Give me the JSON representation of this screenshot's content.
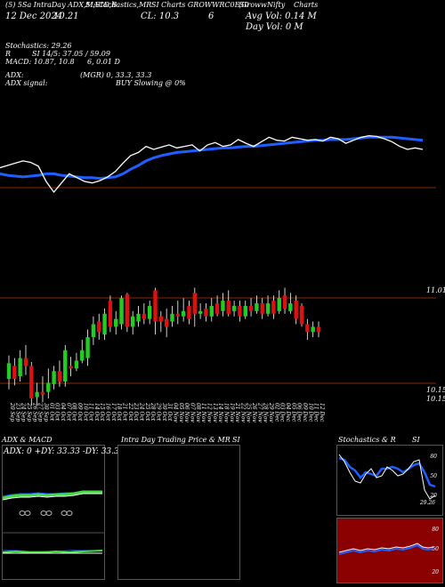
{
  "header": {
    "line1_a": "(5) 5Sa IntraDay ADX,MACD,B",
    "line1_b": "SI,Stochastics,MR",
    "line1_c": "SI Charts GROWWRC0E50",
    "line1_d": "(Groww",
    "line1_e": "Nifty",
    "line1_f": "Charts",
    "date": "12 Dec 2024",
    "date_val": "10.21",
    "close": "CL: 10.3",
    "close_n": "6",
    "avg_vol": "Avg Vol: 0.14  M",
    "day_vol": "Day Vol: 0   M",
    "stoch": "Stochastics: 29.26",
    "rsi_label": "R",
    "si": "SI 14/5: 37.05 / 59.09",
    "macd": "MACD: 10.87,  10.8",
    "macd_b": "6,  0.01 D",
    "adx": "ADX:",
    "adx_vals": "(MGR) 0,  33.3,  33.3",
    "adx_signal": "ADX  signal:",
    "buy": "BUY Slowing @ 0%"
  },
  "price_labels": {
    "top": "11.01",
    "bot1": "10.15",
    "bot2": "10.15"
  },
  "dates": [
    "20 Sep",
    "23 Sep",
    "24 Sep",
    "25 Sep",
    "26 Sep",
    "27 Sep",
    "30 Sep",
    "01 Oct",
    "03 Oct",
    "04 Oct",
    "07 Oct",
    "08 Oct",
    "09 Oct",
    "10 Oct",
    "11 Oct",
    "14 Oct",
    "15 Oct",
    "16 Oct",
    "17 Oct",
    "18 Oct",
    "21 Oct",
    "22 Oct",
    "23 Oct",
    "24 Oct",
    "25 Oct",
    "28 Oct",
    "29 Oct",
    "30 Oct",
    "31 Oct",
    "04 Nov",
    "05 Nov",
    "06 Nov",
    "07 Nov",
    "08 Nov",
    "11 Nov",
    "12 Nov",
    "13 Nov",
    "14 Nov",
    "18 Nov",
    "19 Nov",
    "21 Nov",
    "22 Nov",
    "25 Nov",
    "26 Nov",
    "27 Nov",
    "28 Nov",
    "29 Nov",
    "02 Dec",
    "03 Dec",
    "04 Dec",
    "05 Dec",
    "06 Dec",
    "09 Dec",
    "10 Dec",
    "11 Dec",
    "12 Dec"
  ],
  "chart_data": {
    "type": "candlestick",
    "x": [
      "20 Sep",
      "23 Sep",
      "24 Sep",
      "25 Sep",
      "26 Sep",
      "27 Sep",
      "30 Sep",
      "01 Oct",
      "03 Oct",
      "04 Oct",
      "07 Oct",
      "08 Oct",
      "09 Oct",
      "10 Oct",
      "11 Oct",
      "14 Oct",
      "15 Oct",
      "16 Oct",
      "17 Oct",
      "18 Oct",
      "21 Oct",
      "22 Oct",
      "23 Oct",
      "24 Oct",
      "25 Oct",
      "28 Oct",
      "29 Oct",
      "30 Oct",
      "31 Oct",
      "04 Nov",
      "05 Nov",
      "06 Nov",
      "07 Nov",
      "08 Nov",
      "11 Nov",
      "12 Nov",
      "13 Nov",
      "14 Nov",
      "18 Nov",
      "19 Nov",
      "21 Nov",
      "22 Nov",
      "25 Nov",
      "26 Nov",
      "27 Nov",
      "28 Nov",
      "29 Nov",
      "02 Dec",
      "03 Dec",
      "04 Dec",
      "05 Dec",
      "06 Dec",
      "09 Dec",
      "10 Dec",
      "11 Dec",
      "12 Dec"
    ],
    "candles": [
      {
        "o": 10.3,
        "c": 10.42,
        "h": 10.48,
        "l": 10.22,
        "up": true
      },
      {
        "o": 10.4,
        "c": 10.3,
        "h": 10.46,
        "l": 10.25,
        "up": false
      },
      {
        "o": 10.32,
        "c": 10.46,
        "h": 10.52,
        "l": 10.28,
        "up": true
      },
      {
        "o": 10.46,
        "c": 10.4,
        "h": 10.56,
        "l": 10.33,
        "up": false
      },
      {
        "o": 10.4,
        "c": 10.15,
        "h": 10.43,
        "l": 10.1,
        "up": false
      },
      {
        "o": 10.16,
        "c": 10.2,
        "h": 10.27,
        "l": 10.1,
        "up": true
      },
      {
        "o": 10.2,
        "c": 10.18,
        "h": 10.32,
        "l": 10.12,
        "up": false
      },
      {
        "o": 10.2,
        "c": 10.27,
        "h": 10.38,
        "l": 10.15,
        "up": true
      },
      {
        "o": 10.26,
        "c": 10.36,
        "h": 10.4,
        "l": 10.22,
        "up": true
      },
      {
        "o": 10.36,
        "c": 10.28,
        "h": 10.44,
        "l": 10.24,
        "up": false
      },
      {
        "o": 10.28,
        "c": 10.52,
        "h": 10.56,
        "l": 10.24,
        "up": true
      },
      {
        "o": 10.4,
        "c": 10.38,
        "h": 10.47,
        "l": 10.32,
        "up": false
      },
      {
        "o": 10.38,
        "c": 10.44,
        "h": 10.5,
        "l": 10.36,
        "up": true
      },
      {
        "o": 10.44,
        "c": 10.52,
        "h": 10.6,
        "l": 10.42,
        "up": true
      },
      {
        "o": 10.46,
        "c": 10.62,
        "h": 10.68,
        "l": 10.4,
        "up": true
      },
      {
        "o": 10.62,
        "c": 10.72,
        "h": 10.78,
        "l": 10.56,
        "up": true
      },
      {
        "o": 10.74,
        "c": 10.66,
        "h": 10.8,
        "l": 10.6,
        "up": false
      },
      {
        "o": 10.64,
        "c": 10.8,
        "h": 10.84,
        "l": 10.6,
        "up": true
      },
      {
        "o": 10.9,
        "c": 10.7,
        "h": 10.94,
        "l": 10.66,
        "up": false
      },
      {
        "o": 10.7,
        "c": 10.76,
        "h": 10.82,
        "l": 10.64,
        "up": true
      },
      {
        "o": 10.72,
        "c": 10.92,
        "h": 10.94,
        "l": 10.68,
        "up": true
      },
      {
        "o": 10.95,
        "c": 10.7,
        "h": 10.96,
        "l": 10.66,
        "up": false
      },
      {
        "o": 10.7,
        "c": 10.78,
        "h": 10.82,
        "l": 10.64,
        "up": true
      },
      {
        "o": 10.74,
        "c": 10.8,
        "h": 10.86,
        "l": 10.7,
        "up": true
      },
      {
        "o": 10.8,
        "c": 10.76,
        "h": 10.88,
        "l": 10.72,
        "up": false
      },
      {
        "o": 10.76,
        "c": 10.86,
        "h": 10.9,
        "l": 10.72,
        "up": true
      },
      {
        "o": 10.98,
        "c": 10.74,
        "h": 11.0,
        "l": 10.64,
        "up": false
      },
      {
        "o": 10.78,
        "c": 10.74,
        "h": 10.82,
        "l": 10.66,
        "up": false
      },
      {
        "o": 10.76,
        "c": 10.7,
        "h": 10.84,
        "l": 10.62,
        "up": false
      },
      {
        "o": 10.74,
        "c": 10.8,
        "h": 10.86,
        "l": 10.7,
        "up": true
      },
      {
        "o": 10.8,
        "c": 10.78,
        "h": 10.9,
        "l": 10.72,
        "up": false
      },
      {
        "o": 10.78,
        "c": 10.82,
        "h": 10.92,
        "l": 10.74,
        "up": true
      },
      {
        "o": 10.86,
        "c": 10.76,
        "h": 10.9,
        "l": 10.72,
        "up": false
      },
      {
        "o": 10.96,
        "c": 10.8,
        "h": 11.0,
        "l": 10.7,
        "up": false
      },
      {
        "o": 10.8,
        "c": 10.82,
        "h": 10.88,
        "l": 10.76,
        "up": true
      },
      {
        "o": 10.84,
        "c": 10.78,
        "h": 10.88,
        "l": 10.74,
        "up": false
      },
      {
        "o": 10.78,
        "c": 10.86,
        "h": 10.92,
        "l": 10.74,
        "up": true
      },
      {
        "o": 10.88,
        "c": 10.8,
        "h": 10.94,
        "l": 10.78,
        "up": false
      },
      {
        "o": 10.82,
        "c": 10.9,
        "h": 10.96,
        "l": 10.78,
        "up": true
      },
      {
        "o": 10.9,
        "c": 10.8,
        "h": 10.98,
        "l": 10.78,
        "up": false
      },
      {
        "o": 10.82,
        "c": 10.86,
        "h": 10.9,
        "l": 10.78,
        "up": true
      },
      {
        "o": 10.86,
        "c": 10.78,
        "h": 10.9,
        "l": 10.74,
        "up": false
      },
      {
        "o": 10.78,
        "c": 10.86,
        "h": 10.9,
        "l": 10.76,
        "up": true
      },
      {
        "o": 10.86,
        "c": 10.82,
        "h": 10.92,
        "l": 10.78,
        "up": false
      },
      {
        "o": 10.82,
        "c": 10.88,
        "h": 10.94,
        "l": 10.8,
        "up": true
      },
      {
        "o": 10.88,
        "c": 10.8,
        "h": 10.92,
        "l": 10.76,
        "up": false
      },
      {
        "o": 10.8,
        "c": 10.88,
        "h": 10.94,
        "l": 10.78,
        "up": true
      },
      {
        "o": 10.9,
        "c": 10.8,
        "h": 10.94,
        "l": 10.76,
        "up": false
      },
      {
        "o": 10.82,
        "c": 10.92,
        "h": 10.98,
        "l": 10.8,
        "up": true
      },
      {
        "o": 10.94,
        "c": 10.84,
        "h": 11.0,
        "l": 10.8,
        "up": false
      },
      {
        "o": 10.82,
        "c": 10.88,
        "h": 10.96,
        "l": 10.8,
        "up": true
      },
      {
        "o": 10.9,
        "c": 10.76,
        "h": 10.94,
        "l": 10.72,
        "up": false
      },
      {
        "o": 10.86,
        "c": 10.72,
        "h": 10.88,
        "l": 10.7,
        "up": false
      },
      {
        "o": 10.72,
        "c": 10.66,
        "h": 10.76,
        "l": 10.6,
        "up": false
      },
      {
        "o": 10.66,
        "c": 10.7,
        "h": 10.74,
        "l": 10.62,
        "up": true
      },
      {
        "o": 10.7,
        "c": 10.66,
        "h": 10.74,
        "l": 10.62,
        "up": false
      }
    ],
    "ylim": [
      10.15,
      11.01
    ],
    "colors": {
      "up": "#22cc22",
      "down": "#dd1111"
    }
  },
  "top_indicator": {
    "white": [
      0.6,
      0.63,
      0.66,
      0.69,
      0.67,
      0.62,
      0.42,
      0.28,
      0.4,
      0.52,
      0.47,
      0.42,
      0.4,
      0.43,
      0.48,
      0.55,
      0.66,
      0.76,
      0.8,
      0.88,
      0.84,
      0.87,
      0.9,
      0.86,
      0.88,
      0.9,
      0.82,
      0.9,
      0.93,
      0.88,
      0.9,
      0.97,
      0.92,
      0.88,
      0.94,
      1.0,
      0.96,
      0.95,
      1.0,
      0.98,
      0.96,
      0.97,
      0.95,
      1.0,
      0.98,
      0.92,
      0.96,
      1.0,
      1.02,
      1.01,
      0.98,
      0.94,
      0.88,
      0.84,
      0.86,
      0.84
    ],
    "blue": [
      0.52,
      0.5,
      0.49,
      0.48,
      0.49,
      0.5,
      0.52,
      0.52,
      0.5,
      0.49,
      0.48,
      0.47,
      0.47,
      0.46,
      0.47,
      0.48,
      0.52,
      0.58,
      0.63,
      0.69,
      0.73,
      0.76,
      0.78,
      0.8,
      0.81,
      0.82,
      0.83,
      0.84,
      0.85,
      0.86,
      0.86,
      0.87,
      0.88,
      0.88,
      0.89,
      0.9,
      0.91,
      0.92,
      0.93,
      0.94,
      0.95,
      0.96,
      0.96,
      0.97,
      0.97,
      0.97,
      0.98,
      0.99,
      1.0,
      1.0,
      1.0,
      1.0,
      0.99,
      0.98,
      0.97,
      0.96
    ]
  },
  "panels": {
    "adx_title": "ADX  & MACD",
    "adx_readout": "ADX: 0   +DY: 33.33  -DY: 33.33",
    "intraday_title": "Intra  Day Trading Price  & MR",
    "intraday_si": "SI",
    "stoch_title": "Stochastics & R",
    "stoch_si": "SI",
    "stoch_ticks": [
      "80",
      "50",
      "20"
    ],
    "rsi_ticks": [
      "80",
      "50",
      "20"
    ],
    "stoch_value": "29.26"
  }
}
